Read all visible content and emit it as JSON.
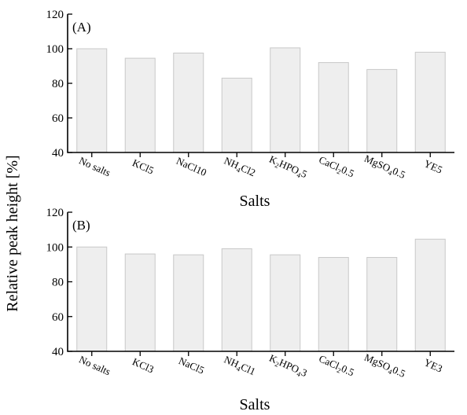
{
  "y_axis_title": "Relative peak height [%]",
  "chart_data": [
    {
      "type": "bar",
      "panel_label": "(A)",
      "xlabel": "Salts",
      "ylim": [
        40,
        120
      ],
      "yticks": [
        40,
        60,
        80,
        100,
        120
      ],
      "categories": [
        {
          "parts": [
            [
              "No salts",
              ""
            ]
          ]
        },
        {
          "parts": [
            [
              "KCl5",
              ""
            ]
          ]
        },
        {
          "parts": [
            [
              "NaCl10",
              ""
            ]
          ]
        },
        {
          "parts": [
            [
              "NH",
              ""
            ],
            [
              "4",
              "sub"
            ],
            [
              "Cl2",
              ""
            ]
          ]
        },
        {
          "parts": [
            [
              "K",
              ""
            ],
            [
              "2",
              "sub"
            ],
            [
              "HPO",
              ""
            ],
            [
              "4",
              "sub"
            ],
            [
              "5",
              ""
            ]
          ]
        },
        {
          "parts": [
            [
              "CaCl",
              ""
            ],
            [
              "2",
              "sub"
            ],
            [
              "0.5",
              ""
            ]
          ]
        },
        {
          "parts": [
            [
              "MgSO",
              ""
            ],
            [
              "4",
              "sub"
            ],
            [
              "0.5",
              ""
            ]
          ]
        },
        {
          "parts": [
            [
              "YE5",
              ""
            ]
          ]
        }
      ],
      "values": [
        100,
        94.5,
        97.5,
        83,
        100.5,
        92,
        88,
        98
      ]
    },
    {
      "type": "bar",
      "panel_label": "(B)",
      "xlabel": "Salts",
      "ylim": [
        40,
        120
      ],
      "yticks": [
        40,
        60,
        80,
        100,
        120
      ],
      "categories": [
        {
          "parts": [
            [
              "No salts",
              ""
            ]
          ]
        },
        {
          "parts": [
            [
              "KCl3",
              ""
            ]
          ]
        },
        {
          "parts": [
            [
              "NaCl5",
              ""
            ]
          ]
        },
        {
          "parts": [
            [
              "NH",
              ""
            ],
            [
              "4",
              "sub"
            ],
            [
              "Cl1",
              ""
            ]
          ]
        },
        {
          "parts": [
            [
              "K",
              ""
            ],
            [
              "2",
              "sub"
            ],
            [
              "HPO",
              ""
            ],
            [
              "4",
              "sub"
            ],
            [
              "3",
              ""
            ]
          ]
        },
        {
          "parts": [
            [
              "CaCl",
              ""
            ],
            [
              "2",
              "sub"
            ],
            [
              "0.5",
              ""
            ]
          ]
        },
        {
          "parts": [
            [
              "MgSO",
              ""
            ],
            [
              "4",
              "sub"
            ],
            [
              "0.5",
              ""
            ]
          ]
        },
        {
          "parts": [
            [
              "YE3",
              ""
            ]
          ]
        }
      ],
      "values": [
        100,
        96,
        95.5,
        99,
        95.5,
        94,
        94,
        104.5
      ]
    }
  ]
}
